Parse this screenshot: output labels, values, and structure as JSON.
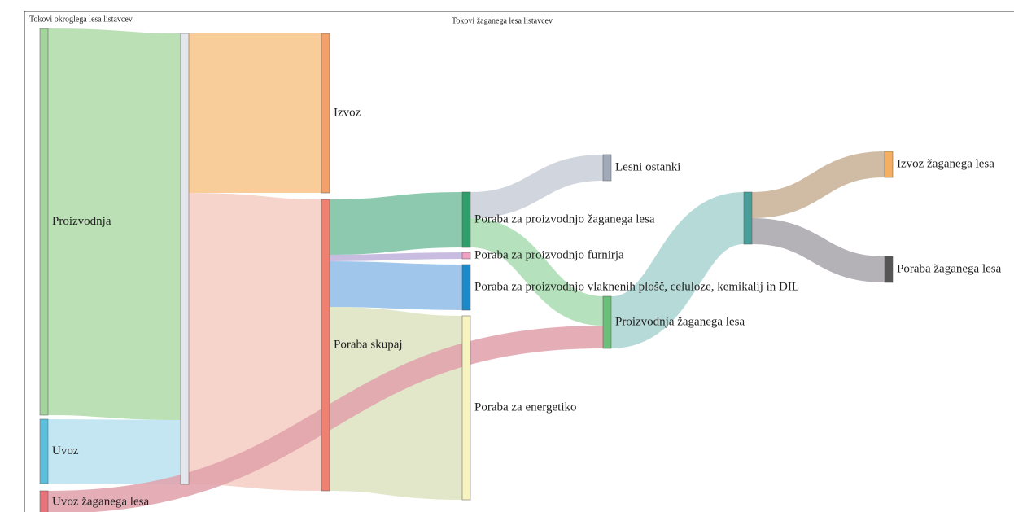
{
  "chart_data": {
    "type": "sankey",
    "titles": [
      "Tokovi okroglega lesa listavcev",
      "Tokovi žaganega lesa listavcev"
    ],
    "nodes": [
      {
        "name": "Proizvodnja",
        "color": "#a3d49b"
      },
      {
        "name": "Uvoz",
        "color": "#5bc0de"
      },
      {
        "name": "Uvoz žaganega lesa",
        "color": "#e8737a"
      },
      {
        "name": null,
        "color": "#e3e6ec"
      },
      {
        "name": "Izvoz",
        "color": "#f4a06a"
      },
      {
        "name": "Poraba skupaj",
        "color": "#f08070"
      },
      {
        "name": "Poraba za proizvodnjo žaganega lesa",
        "color": "#2e9e6a"
      },
      {
        "name": "Poraba za proizvodnjo furnirja",
        "color": "#f0a0c0"
      },
      {
        "name": "Poraba za proizvodnjo vlaknenih plošč, celuloze, kemikalij in DIL",
        "color": "#1a8ac8"
      },
      {
        "name": "Poraba za energetiko",
        "color": "#f8f4c0"
      },
      {
        "name": "Lesni ostanki",
        "color": "#a0aab8"
      },
      {
        "name": "Proizvodnja žaganega lesa",
        "color": "#6cbf7a"
      },
      {
        "name": null,
        "color": "#4a9e9a"
      },
      {
        "name": "Izvoz žaganega lesa",
        "color": "#f4b060"
      },
      {
        "name": "Poraba žaganega lesa",
        "color": "#555555"
      }
    ],
    "links": [
      {
        "source": 0,
        "target": 3,
        "value": 475,
        "color": "#b0dba8"
      },
      {
        "source": 1,
        "target": 3,
        "value": 79,
        "color": "#b8e2f0"
      },
      {
        "source": 3,
        "target": 4,
        "value": 196,
        "color": "#f8c488"
      },
      {
        "source": 3,
        "target": 5,
        "value": 358,
        "color": "#f5cdc2"
      },
      {
        "source": 5,
        "target": 6,
        "value": 68,
        "color": "#78c0a0"
      },
      {
        "source": 5,
        "target": 7,
        "value": 8,
        "color": "#c0b0dc"
      },
      {
        "source": 5,
        "target": 8,
        "value": 56,
        "color": "#90bce8"
      },
      {
        "source": 5,
        "target": 9,
        "value": 226,
        "color": "#dde3c0"
      },
      {
        "source": 6,
        "target": 10,
        "value": 32,
        "color": "#c8ced8"
      },
      {
        "source": 6,
        "target": 11,
        "value": 36,
        "color": "#a8dcb0"
      },
      {
        "source": 2,
        "target": 11,
        "value": 28,
        "color": "#e0a0aa"
      },
      {
        "source": 11,
        "target": 12,
        "value": 64,
        "color": "#a8d4d0"
      },
      {
        "source": 12,
        "target": 13,
        "value": 32,
        "color": "#c8b094"
      },
      {
        "source": 12,
        "target": 14,
        "value": 32,
        "color": "#a8a4aa"
      }
    ]
  }
}
